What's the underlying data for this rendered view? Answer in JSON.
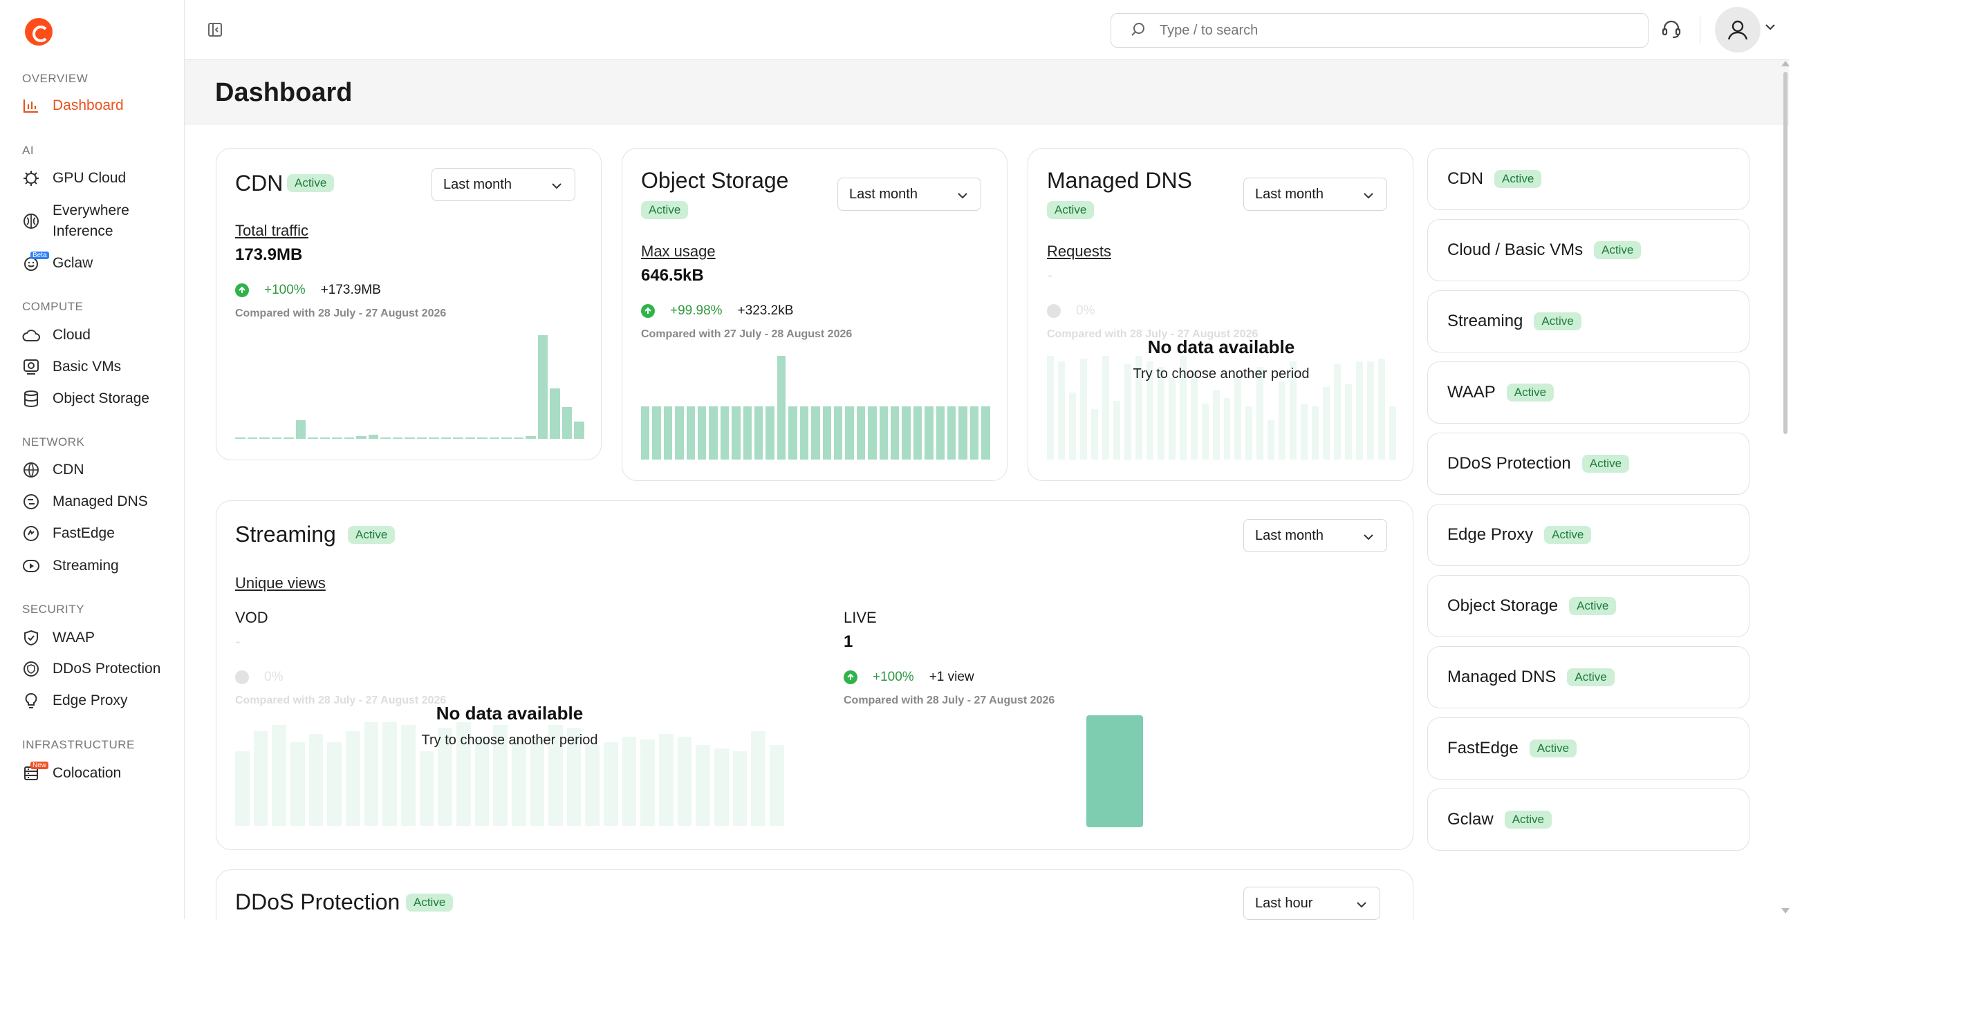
{
  "sidebar": {
    "sections": [
      {
        "title": "OVERVIEW",
        "items": [
          {
            "label": "Dashboard",
            "icon": "chart-bars-icon",
            "active": true
          }
        ]
      },
      {
        "title": "AI",
        "items": [
          {
            "label": "GPU Cloud",
            "icon": "gpu-chip-icon"
          },
          {
            "label": "Everywhere Inference",
            "icon": "brain-icon"
          },
          {
            "label": "Gclaw",
            "icon": "smile-icon",
            "tag": "Beta"
          }
        ]
      },
      {
        "title": "COMPUTE",
        "items": [
          {
            "label": "Cloud",
            "icon": "cloud-icon"
          },
          {
            "label": "Basic VMs",
            "icon": "vm-icon"
          },
          {
            "label": "Object Storage",
            "icon": "database-icon"
          }
        ]
      },
      {
        "title": "NETWORK",
        "items": [
          {
            "label": "CDN",
            "icon": "globe-icon"
          },
          {
            "label": "Managed DNS",
            "icon": "dns-icon"
          },
          {
            "label": "FastEdge",
            "icon": "fastedge-icon"
          },
          {
            "label": "Streaming",
            "icon": "play-icon"
          }
        ]
      },
      {
        "title": "SECURITY",
        "items": [
          {
            "label": "WAAP",
            "icon": "shield-icon"
          },
          {
            "label": "DDoS Protection",
            "icon": "shield-globe-icon"
          },
          {
            "label": "Edge Proxy",
            "icon": "bulb-icon"
          }
        ]
      },
      {
        "title": "INFRASTRUCTURE",
        "items": [
          {
            "label": "Colocation",
            "icon": "server-icon",
            "tag": "New"
          }
        ]
      }
    ]
  },
  "header": {
    "search_placeholder": "Type / to search"
  },
  "page": {
    "title": "Dashboard"
  },
  "cdn": {
    "title": "CDN",
    "status": "Active",
    "period": "Last month",
    "metric": "Total traffic",
    "value": "173.9MB",
    "pct": "+100%",
    "delta": "+173.9MB",
    "compare": "Compared with 28 July - 27 August 2026",
    "chart_values": [
      1,
      1,
      1,
      1,
      1,
      14,
      1,
      1,
      1,
      1,
      2,
      3,
      1,
      1,
      1,
      1,
      1,
      1,
      1,
      1,
      1,
      1,
      1,
      1,
      2,
      78,
      38,
      24,
      13
    ]
  },
  "object_storage": {
    "title": "Object Storage",
    "status": "Active",
    "period": "Last month",
    "metric": "Max usage",
    "value": "646.5kB",
    "pct": "+99.98%",
    "delta": "+323.2kB",
    "compare": "Compared with 27 July - 28 August 2026",
    "chart_values": [
      36,
      36,
      36,
      36,
      36,
      36,
      36,
      36,
      36,
      36,
      36,
      36,
      70,
      36,
      36,
      36,
      36,
      36,
      36,
      36,
      36,
      36,
      36,
      36,
      36,
      36,
      36,
      36,
      36,
      36,
      36
    ]
  },
  "managed_dns": {
    "title": "Managed DNS",
    "status": "Active",
    "period": "Last month",
    "metric": "Requests",
    "value": "-",
    "pct": "0%",
    "compare": "Compared with 28 July - 27 August 2026",
    "nodata_title": "No data available",
    "nodata_sub": "Try to choose another period",
    "chart_values": [
      74,
      70,
      48,
      72,
      36,
      74,
      42,
      68,
      74,
      70,
      66,
      58,
      74,
      64,
      40,
      50,
      44,
      60,
      38,
      66,
      28,
      56,
      70,
      40,
      38,
      52,
      68,
      54,
      70,
      70,
      72,
      38
    ]
  },
  "streaming": {
    "title": "Streaming",
    "status": "Active",
    "period": "Last month",
    "metric": "Unique views",
    "vod_label": "VOD",
    "vod_value": "-",
    "vod_pct": "0%",
    "vod_compare": "Compared with 28 July - 27 August 2026",
    "nodata_title": "No data available",
    "nodata_sub": "Try to choose another period",
    "vod_chart_values": [
      52,
      66,
      70,
      58,
      64,
      58,
      66,
      72,
      72,
      70,
      52,
      68,
      72,
      62,
      70,
      60,
      60,
      70,
      68,
      56,
      58,
      62,
      60,
      64,
      62,
      56,
      54,
      52,
      66,
      56
    ],
    "live_label": "LIVE",
    "live_value": "1",
    "live_pct": "+100%",
    "live_delta": "+1 view",
    "live_compare": "Compared with 28 July - 27 August 2026",
    "live_chart_values": [
      1
    ]
  },
  "ddos": {
    "title": "DDoS Protection",
    "status": "Active",
    "period": "Last hour"
  },
  "product_list": [
    {
      "name": "CDN",
      "status": "Active"
    },
    {
      "name": "Cloud / Basic VMs",
      "status": "Active"
    },
    {
      "name": "Streaming",
      "status": "Active"
    },
    {
      "name": "WAAP",
      "status": "Active"
    },
    {
      "name": "DDoS Protection",
      "status": "Active"
    },
    {
      "name": "Edge Proxy",
      "status": "Active"
    },
    {
      "name": "Object Storage",
      "status": "Active"
    },
    {
      "name": "Managed DNS",
      "status": "Active"
    },
    {
      "name": "FastEdge",
      "status": "Active"
    },
    {
      "name": "Gclaw",
      "status": "Active"
    }
  ],
  "colors": {
    "brand": "#ff4d1a",
    "active_nav": "#e8531f",
    "badge_bg": "#ccefd6",
    "badge_text": "#1f7a3c",
    "positive": "#2fb34a",
    "chart_bar": "#a8dcc4"
  }
}
